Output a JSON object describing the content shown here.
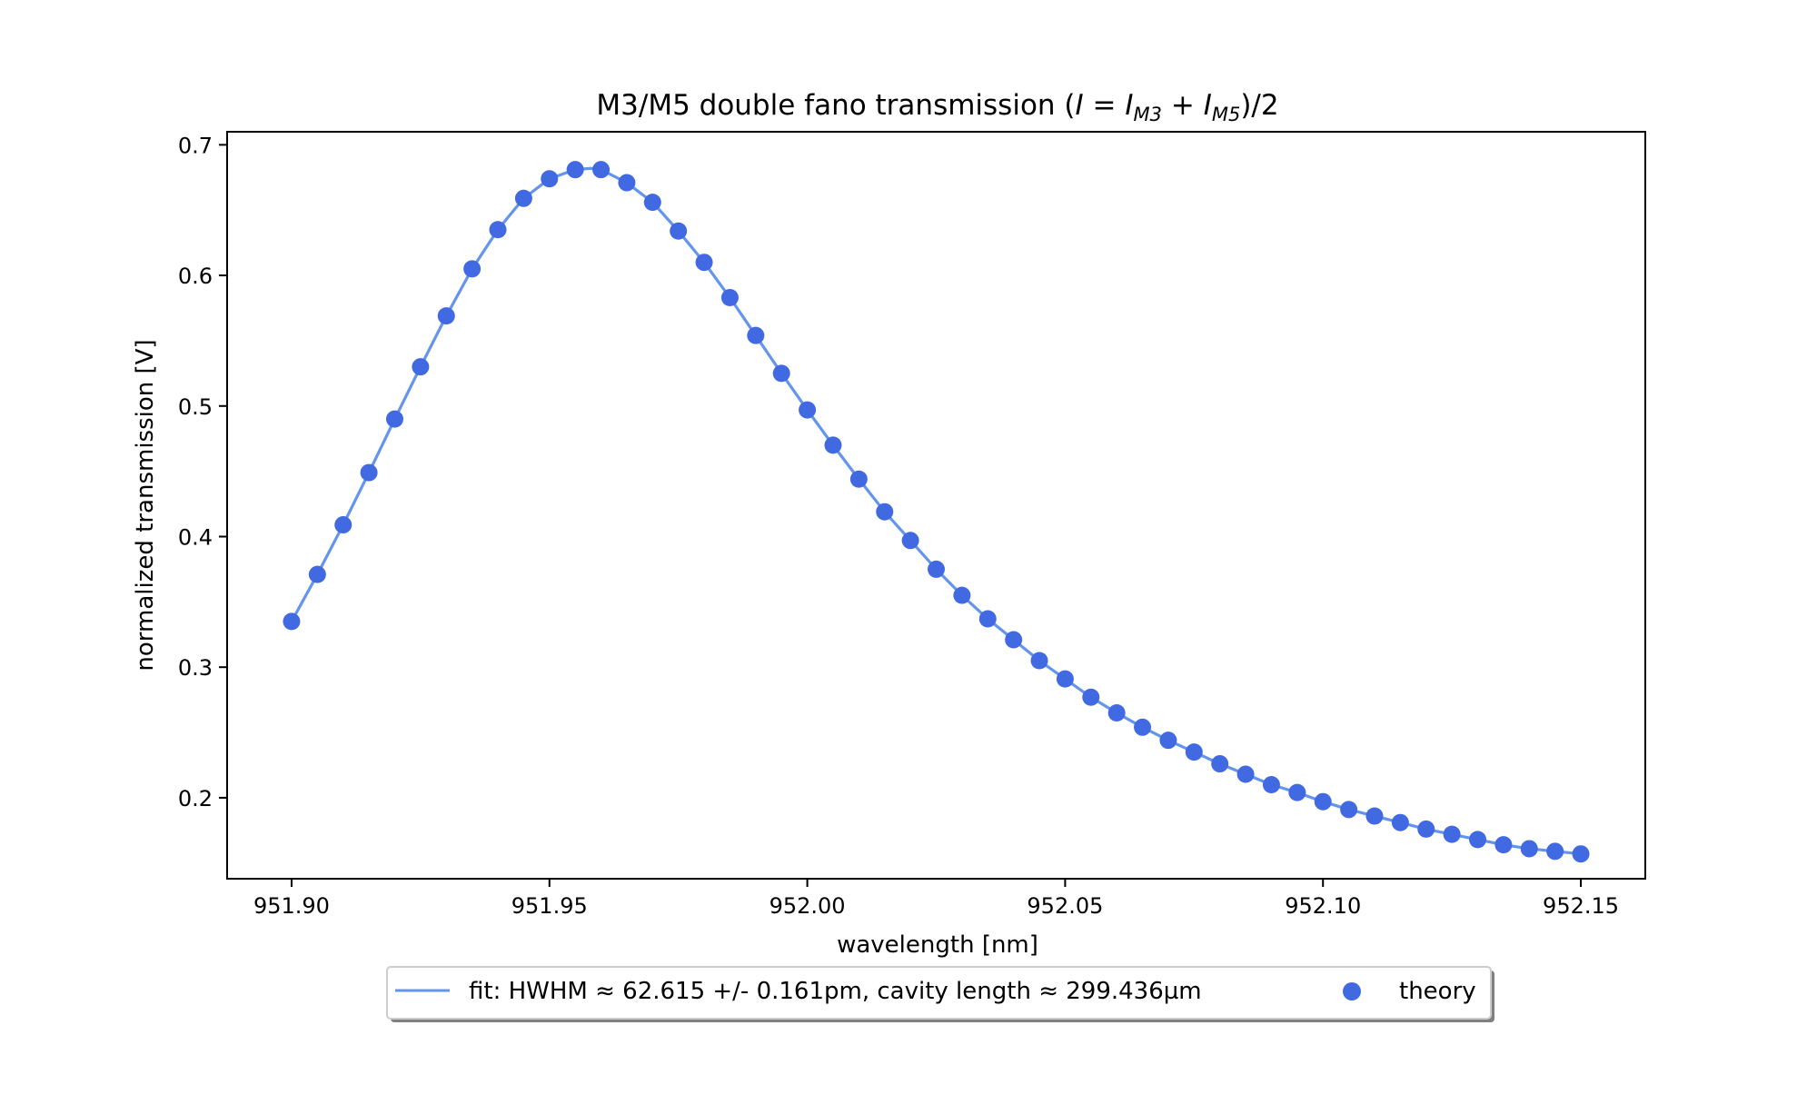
{
  "chart_data": {
    "type": "line",
    "title": {
      "prefix": "M3/M5 double fano transmission (",
      "I1": "I",
      "eq": " = ",
      "I2": "I",
      "sub1": "M3",
      "plus": " + ",
      "I3": "I",
      "sub2": "M5",
      "suffix": ")/2"
    },
    "xlabel": "wavelength [nm]",
    "ylabel": "normalized transmission [V]",
    "xlim": [
      951.8875,
      952.1625
    ],
    "ylim": [
      0.138,
      0.71
    ],
    "xticks": [
      951.9,
      951.95,
      952.0,
      952.05,
      952.1,
      952.15
    ],
    "xtick_labels": [
      "951.90",
      "951.95",
      "952.00",
      "952.05",
      "952.10",
      "952.15"
    ],
    "yticks": [
      0.2,
      0.3,
      0.4,
      0.5,
      0.6,
      0.7
    ],
    "ytick_labels": [
      "0.2",
      "0.3",
      "0.4",
      "0.5",
      "0.6",
      "0.7"
    ],
    "grid": false,
    "legend_position": "below plot, centered",
    "series": [
      {
        "name": "fit: HWHM ≈ 62.615 +/- 0.161pm, cavity length ≈ 299.436µm",
        "kind": "line",
        "color": "#6495ed",
        "x": [
          951.9,
          951.905,
          951.91,
          951.915,
          951.92,
          951.925,
          951.93,
          951.935,
          951.94,
          951.945,
          951.95,
          951.955,
          951.958,
          951.96,
          951.965,
          951.97,
          951.975,
          951.98,
          951.985,
          951.99,
          951.995,
          952.0,
          952.005,
          952.01,
          952.015,
          952.02,
          952.025,
          952.03,
          952.035,
          952.04,
          952.045,
          952.05,
          952.055,
          952.06,
          952.065,
          952.07,
          952.075,
          952.08,
          952.085,
          952.09,
          952.095,
          952.1,
          952.105,
          952.11,
          952.115,
          952.12,
          952.125,
          952.13,
          952.135,
          952.14,
          952.145,
          952.15
        ],
        "y": [
          0.335,
          0.371,
          0.409,
          0.449,
          0.49,
          0.53,
          0.569,
          0.605,
          0.635,
          0.659,
          0.674,
          0.681,
          0.682,
          0.681,
          0.671,
          0.656,
          0.634,
          0.61,
          0.583,
          0.554,
          0.525,
          0.497,
          0.47,
          0.444,
          0.419,
          0.397,
          0.375,
          0.355,
          0.337,
          0.321,
          0.305,
          0.291,
          0.277,
          0.265,
          0.254,
          0.244,
          0.235,
          0.226,
          0.218,
          0.21,
          0.204,
          0.197,
          0.191,
          0.186,
          0.181,
          0.176,
          0.172,
          0.168,
          0.164,
          0.161,
          0.159,
          0.157
        ]
      },
      {
        "name": "theory",
        "kind": "scatter",
        "color": "#4169e1",
        "x": [
          951.9,
          951.905,
          951.91,
          951.915,
          951.92,
          951.925,
          951.93,
          951.935,
          951.94,
          951.945,
          951.95,
          951.955,
          951.96,
          951.965,
          951.97,
          951.975,
          951.98,
          951.985,
          951.99,
          951.995,
          952.0,
          952.005,
          952.01,
          952.015,
          952.02,
          952.025,
          952.03,
          952.035,
          952.04,
          952.045,
          952.05,
          952.055,
          952.06,
          952.065,
          952.07,
          952.075,
          952.08,
          952.085,
          952.09,
          952.095,
          952.1,
          952.105,
          952.11,
          952.115,
          952.12,
          952.125,
          952.13,
          952.135,
          952.14,
          952.145,
          952.15
        ],
        "y": [
          0.335,
          0.371,
          0.409,
          0.449,
          0.49,
          0.53,
          0.569,
          0.605,
          0.635,
          0.659,
          0.674,
          0.681,
          0.681,
          0.671,
          0.656,
          0.634,
          0.61,
          0.583,
          0.554,
          0.525,
          0.497,
          0.47,
          0.444,
          0.419,
          0.397,
          0.375,
          0.355,
          0.337,
          0.321,
          0.305,
          0.291,
          0.277,
          0.265,
          0.254,
          0.244,
          0.235,
          0.226,
          0.218,
          0.21,
          0.204,
          0.197,
          0.191,
          0.186,
          0.181,
          0.176,
          0.172,
          0.168,
          0.164,
          0.161,
          0.159,
          0.157
        ]
      }
    ]
  }
}
